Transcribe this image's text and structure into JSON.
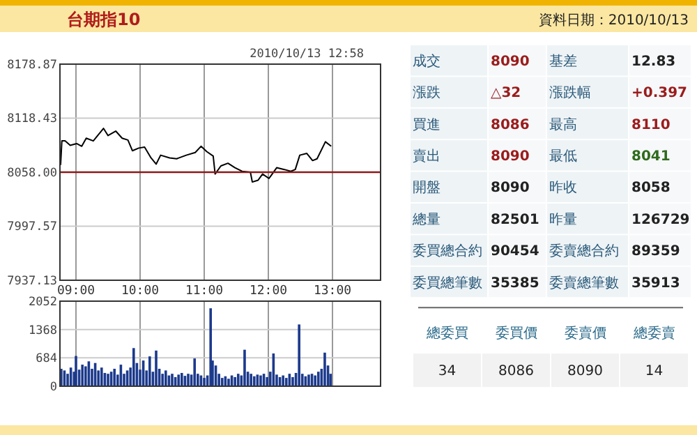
{
  "chart_data": [
    {
      "type": "line",
      "title": "台期指10",
      "annotations": [
        "2010/10/13 12:58"
      ],
      "color": "#000000",
      "grid": true,
      "xlim": [
        8.75,
        13.75
      ],
      "xticks": [
        {
          "value": 9,
          "label": "09:00"
        },
        {
          "value": 10,
          "label": "10:00"
        },
        {
          "value": 11,
          "label": "11:00"
        },
        {
          "value": 12,
          "label": "12:00"
        },
        {
          "value": 13,
          "label": "13:00"
        }
      ],
      "ylim": [
        7937.13,
        8178.87
      ],
      "yticks": [
        {
          "value": 7937.13,
          "label": "7937.13"
        },
        {
          "value": 7997.57,
          "label": "7997.57"
        },
        {
          "value": 8058,
          "label": "8058.00"
        },
        {
          "value": 8118.43,
          "label": "8118.43"
        },
        {
          "value": 8178.87,
          "label": "8178.87"
        }
      ],
      "ref_lines": [
        {
          "axis": "y",
          "value": 8058,
          "color": "#8b1a1a"
        }
      ],
      "x": [
        8.76,
        8.78,
        8.83,
        8.91,
        9.01,
        9.09,
        9.16,
        9.27,
        9.43,
        9.5,
        9.62,
        9.72,
        9.81,
        9.88,
        9.98,
        10.07,
        10.17,
        10.25,
        10.32,
        10.46,
        10.57,
        10.72,
        10.86,
        10.95,
        11.04,
        11.14,
        11.17,
        11.26,
        11.37,
        11.48,
        11.59,
        11.72,
        11.75,
        11.84,
        11.91,
        12.01,
        12.06,
        12.13,
        12.25,
        12.35,
        12.42,
        12.49,
        12.6,
        12.69,
        12.76,
        12.89,
        12.98
      ],
      "values": [
        8066,
        8093,
        8093,
        8088,
        8090,
        8087,
        8096,
        8093,
        8107,
        8099,
        8104,
        8096,
        8094,
        8082,
        8085,
        8086,
        8074,
        8067,
        8077,
        8074,
        8073,
        8077,
        8080,
        8087,
        8081,
        8076,
        8056,
        8065,
        8068,
        8063,
        8059,
        8058,
        8047,
        8049,
        8056,
        8051,
        8056,
        8063,
        8061,
        8059,
        8061,
        8077,
        8079,
        8071,
        8073,
        8092,
        8087
      ]
    },
    {
      "type": "bar",
      "color": "#1c3a8c",
      "grid": true,
      "tick_labels": "y",
      "xlim": [
        8.75,
        13.75
      ],
      "xticks": [
        {
          "value": 9,
          "label": null
        },
        {
          "value": 10,
          "label": null
        },
        {
          "value": 11,
          "label": null
        },
        {
          "value": 12,
          "label": null
        },
        {
          "value": 13,
          "label": null
        }
      ],
      "ylim": [
        0,
        2052
      ],
      "yticks": [
        0,
        684,
        1368,
        2052
      ],
      "x": [
        8.77,
        8.82,
        8.87,
        8.92,
        8.97,
        9.0,
        9.05,
        9.1,
        9.15,
        9.2,
        9.25,
        9.3,
        9.35,
        9.4,
        9.45,
        9.5,
        9.55,
        9.6,
        9.65,
        9.7,
        9.75,
        9.8,
        9.85,
        9.9,
        9.95,
        10.0,
        10.05,
        10.1,
        10.15,
        10.2,
        10.25,
        10.3,
        10.35,
        10.4,
        10.45,
        10.5,
        10.55,
        10.6,
        10.65,
        10.7,
        10.75,
        10.8,
        10.85,
        10.9,
        10.95,
        11.0,
        11.05,
        11.1,
        11.13,
        11.18,
        11.23,
        11.28,
        11.33,
        11.38,
        11.43,
        11.48,
        11.53,
        11.58,
        11.63,
        11.68,
        11.73,
        11.78,
        11.83,
        11.88,
        11.93,
        11.98,
        12.03,
        12.08,
        12.13,
        12.18,
        12.23,
        12.28,
        12.33,
        12.38,
        12.43,
        12.48,
        12.53,
        12.58,
        12.63,
        12.68,
        12.73,
        12.78,
        12.83,
        12.88,
        12.93,
        12.97
      ],
      "values": [
        420,
        380,
        300,
        450,
        350,
        730,
        400,
        520,
        480,
        600,
        420,
        560,
        380,
        450,
        320,
        300,
        350,
        420,
        280,
        520,
        300,
        380,
        450,
        920,
        560,
        400,
        620,
        380,
        720,
        350,
        860,
        420,
        300,
        380,
        260,
        300,
        220,
        280,
        320,
        250,
        300,
        280,
        670,
        300,
        260,
        200,
        260,
        1880,
        620,
        500,
        300,
        200,
        240,
        180,
        260,
        220,
        300,
        260,
        880,
        350,
        300,
        240,
        280,
        260,
        300,
        220,
        350,
        790,
        280,
        220,
        260,
        200,
        300,
        220,
        320,
        1490,
        300,
        240,
        280,
        300,
        260,
        350,
        420,
        810,
        500,
        300
      ]
    },
    {
      "type": "other",
      "title": "資料日期：2010/10/13",
      "annotations": [
        "成交",
        "8090",
        "基差",
        "12.83",
        "漲跌",
        "△32",
        "漲跌幅",
        "+0.397",
        "買進",
        "8086",
        "最高",
        "8110",
        "賣出",
        "8090",
        "最低",
        "8041",
        "開盤",
        "8090",
        "昨收",
        "8058",
        "總量",
        "82501",
        "昨量",
        "126729",
        "委買總合約",
        "90454",
        "委賣總合約",
        "89359",
        "委買總筆數",
        "35385",
        "委賣總筆數",
        "35913",
        "總委買",
        "委買價",
        "委賣價",
        "總委賣",
        "34",
        "8086",
        "8090",
        "14"
      ]
    }
  ]
}
